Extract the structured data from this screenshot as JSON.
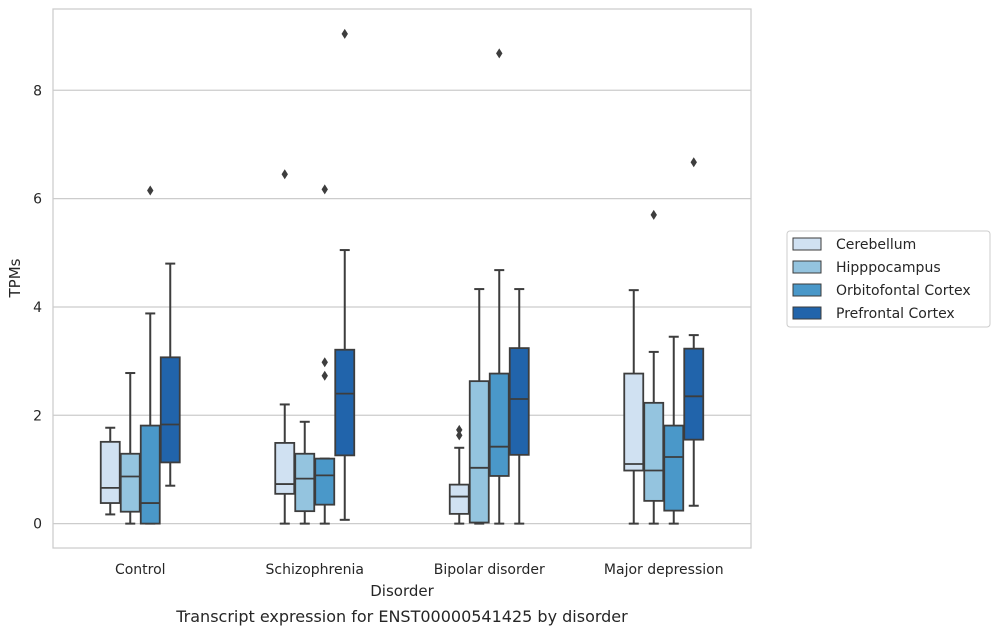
{
  "chart_data": {
    "type": "box",
    "caption": "Transcript expression for ENST00000541425 by disorder",
    "xlabel": "Disorder",
    "ylabel": "TPMs",
    "ylim": [
      -0.45,
      9.5
    ],
    "yticks": [
      0,
      2,
      4,
      6,
      8
    ],
    "grid": "horizontal",
    "legend_position": "right",
    "categories": [
      "Control",
      "Schizophrenia",
      "Bipolar disorder",
      "Major depression"
    ],
    "series": [
      {
        "name": "Cerebellum",
        "color": "#d0e1f2",
        "boxes": [
          {
            "whislo": 0.17,
            "q1": 0.38,
            "med": 0.66,
            "q3": 1.51,
            "whishi": 1.77,
            "fliers": []
          },
          {
            "whislo": 0.0,
            "q1": 0.55,
            "med": 0.73,
            "q3": 1.49,
            "whishi": 2.2,
            "fliers": [
              6.45
            ]
          },
          {
            "whislo": 0.0,
            "q1": 0.18,
            "med": 0.5,
            "q3": 0.72,
            "whishi": 1.4,
            "fliers": [
              1.63,
              1.73
            ]
          },
          {
            "whislo": 0.0,
            "q1": 0.98,
            "med": 1.1,
            "q3": 2.77,
            "whishi": 4.31,
            "fliers": []
          }
        ]
      },
      {
        "name": "Hipppocampus",
        "color": "#94c4df",
        "boxes": [
          {
            "whislo": 0.0,
            "q1": 0.22,
            "med": 0.87,
            "q3": 1.29,
            "whishi": 2.78,
            "fliers": []
          },
          {
            "whislo": 0.0,
            "q1": 0.23,
            "med": 0.83,
            "q3": 1.29,
            "whishi": 1.88,
            "fliers": []
          },
          {
            "whislo": 0.0,
            "q1": 0.02,
            "med": 1.03,
            "q3": 2.63,
            "whishi": 4.33,
            "fliers": []
          },
          {
            "whislo": 0.0,
            "q1": 0.42,
            "med": 0.98,
            "q3": 2.23,
            "whishi": 3.17,
            "fliers": [
              5.7
            ]
          }
        ]
      },
      {
        "name": "Orbitofontal Cortex",
        "color": "#4a98c9",
        "boxes": [
          {
            "whislo": 0.0,
            "q1": 0.0,
            "med": 0.38,
            "q3": 1.81,
            "whishi": 3.88,
            "fliers": [
              6.15
            ]
          },
          {
            "whislo": 0.0,
            "q1": 0.35,
            "med": 0.89,
            "q3": 1.2,
            "whishi": 1.2,
            "fliers": [
              2.73,
              2.98,
              6.17
            ]
          },
          {
            "whislo": 0.0,
            "q1": 0.88,
            "med": 1.42,
            "q3": 2.77,
            "whishi": 4.68,
            "fliers": [
              8.68
            ]
          },
          {
            "whislo": 0.0,
            "q1": 0.24,
            "med": 1.23,
            "q3": 1.81,
            "whishi": 3.45,
            "fliers": []
          }
        ]
      },
      {
        "name": "Prefrontal Cortex",
        "color": "#2164ab",
        "boxes": [
          {
            "whislo": 0.7,
            "q1": 1.13,
            "med": 1.83,
            "q3": 3.07,
            "whishi": 4.8,
            "fliers": []
          },
          {
            "whislo": 0.07,
            "q1": 1.26,
            "med": 2.4,
            "q3": 3.21,
            "whishi": 5.05,
            "fliers": [
              9.04
            ]
          },
          {
            "whislo": 0.0,
            "q1": 1.27,
            "med": 2.3,
            "q3": 3.24,
            "whishi": 4.33,
            "fliers": []
          },
          {
            "whislo": 0.33,
            "q1": 1.55,
            "med": 2.35,
            "q3": 3.23,
            "whishi": 3.48,
            "fliers": [
              6.67
            ]
          }
        ]
      }
    ]
  }
}
